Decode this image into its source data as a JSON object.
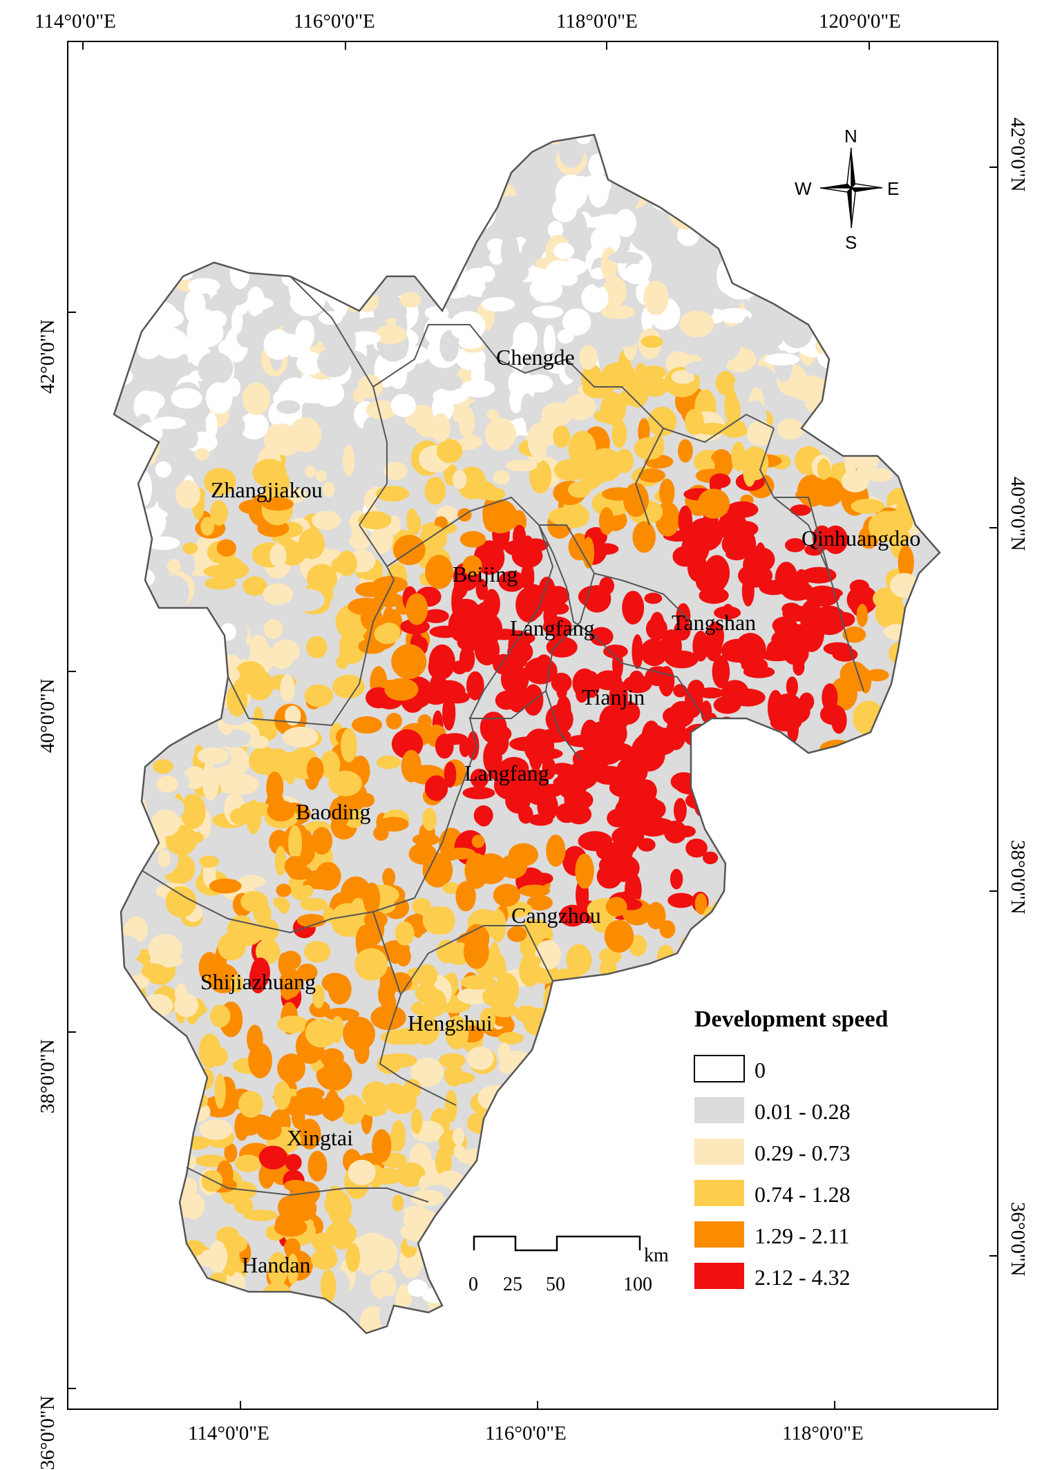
{
  "map": {
    "top_lon_labels": [
      "114°0'0\"E",
      "116°0'0\"E",
      "118°0'0\"E",
      "120°0'0\"E"
    ],
    "bottom_lon_labels": [
      "114°0'0\"E",
      "116°0'0\"E",
      "118°0'0\"E"
    ],
    "left_lat_labels": [
      "42°0'0\"N",
      "40°0'0\"N",
      "38°0'0\"N",
      "36°0'0\"N"
    ],
    "right_lat_labels": [
      "42°0'0\"N",
      "40°0'0\"N",
      "38°0'0\"N",
      "36°0'0\"N"
    ],
    "cities": [
      {
        "name": "Chengde"
      },
      {
        "name": "Zhangjiakou"
      },
      {
        "name": "Qinhuangdao"
      },
      {
        "name": "Beijing"
      },
      {
        "name": "Langfang"
      },
      {
        "name": "Tangshan"
      },
      {
        "name": "Tianjin"
      },
      {
        "name": "Langfang"
      },
      {
        "name": "Baoding"
      },
      {
        "name": "Cangzhou"
      },
      {
        "name": "Shijiazhuang"
      },
      {
        "name": "Hengshui"
      },
      {
        "name": "Xingtai"
      },
      {
        "name": "Handan"
      }
    ],
    "compass": {
      "n": "N",
      "s": "S",
      "e": "E",
      "w": "W"
    },
    "scale_bar": {
      "unit": "km",
      "ticks": [
        "0",
        "25",
        "50",
        "100"
      ]
    },
    "legend": {
      "title": "Development speed",
      "items": [
        {
          "label": "0",
          "color": "#ffffff"
        },
        {
          "label": "0.01 - 0.28",
          "color": "#dcdcdc"
        },
        {
          "label": "0.29 - 0.73",
          "color": "#fde8bc"
        },
        {
          "label": "0.74 - 1.28",
          "color": "#fdcd4d"
        },
        {
          "label": "1.29 - 2.11",
          "color": "#fb8c00"
        },
        {
          "label": "2.12 - 4.32",
          "color": "#f01010"
        }
      ]
    }
  }
}
